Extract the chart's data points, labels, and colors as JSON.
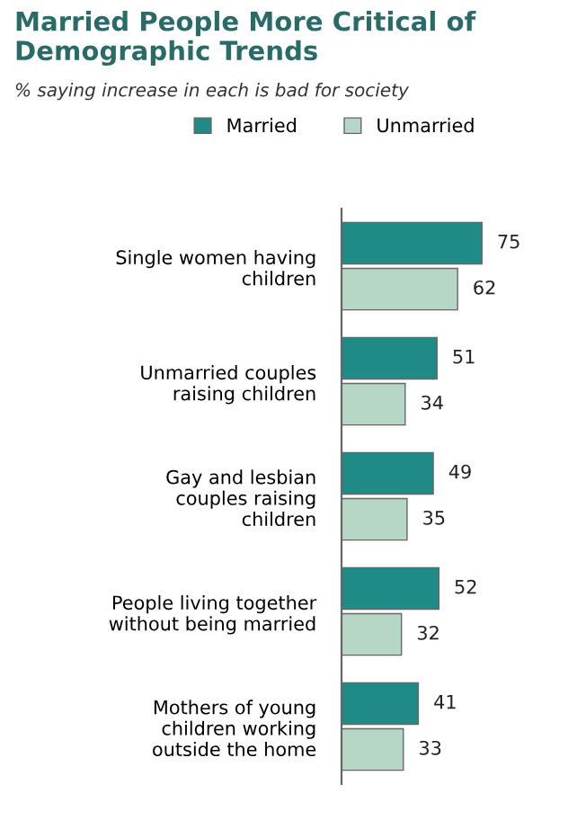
{
  "chart_data": {
    "type": "bar",
    "orientation": "horizontal",
    "title": "Married People More Critical of\nDemographic Trends",
    "subtitle": "% saying increase in each is bad for society",
    "categories": [
      "Single women having\nchildren",
      "Unmarried couples\nraising children",
      "Gay and lesbian\ncouples raising\nchildren",
      "People living together\nwithout being married",
      "Mothers of young\nchildren working\noutside the home"
    ],
    "series": [
      {
        "name": "Married",
        "color": "#1f8a86",
        "values": [
          75,
          51,
          49,
          52,
          41
        ]
      },
      {
        "name": "Unmarried",
        "color": "#b7d7c6",
        "values": [
          62,
          34,
          35,
          32,
          33
        ]
      }
    ],
    "data_labels": true,
    "legend": "top",
    "grid": false
  }
}
